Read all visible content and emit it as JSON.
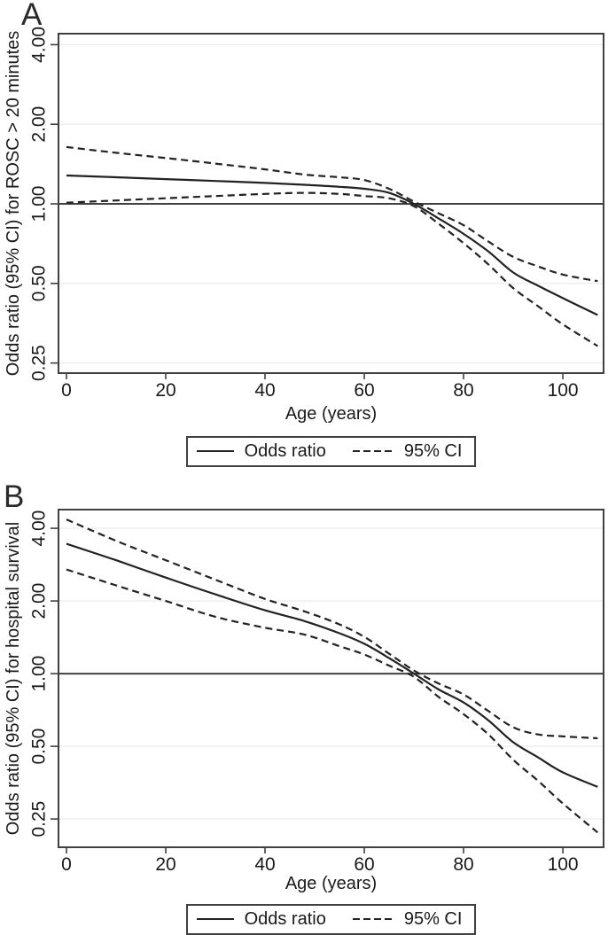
{
  "colors": {
    "line": "#222222",
    "frame": "#404040",
    "grid": "#ededed",
    "reference": "#404040",
    "text": "#1a1a1a",
    "background": "#ffffff"
  },
  "chart_data": [
    {
      "type": "line",
      "panel": "A",
      "title": "",
      "xlabel": "Age (years)",
      "ylabel": "Odds ratio (95% CI) for ROSC > 20 minutes",
      "x_scale": "linear",
      "y_scale": "log2",
      "xlim": [
        -1.6,
        108.2
      ],
      "ylim": [
        0.229,
        4.4
      ],
      "grid": true,
      "reference_line": 1.0,
      "legend_position": "bottom-center",
      "x_ticks": [
        {
          "v": 0,
          "label": "0"
        },
        {
          "v": 20,
          "label": "20"
        },
        {
          "v": 40,
          "label": "40"
        },
        {
          "v": 60,
          "label": "60"
        },
        {
          "v": 80,
          "label": "80"
        },
        {
          "v": 100,
          "label": "100"
        }
      ],
      "y_ticks": [
        {
          "v": 4,
          "label": "4.00"
        },
        {
          "v": 2,
          "label": "2.00"
        },
        {
          "v": 1,
          "label": "1.00"
        },
        {
          "v": 0.5,
          "label": "0.50"
        },
        {
          "v": 0.25,
          "label": "0.25"
        }
      ],
      "x": [
        0,
        10,
        20,
        30,
        40,
        48,
        55,
        60,
        65,
        70,
        75,
        80,
        85,
        90,
        95,
        100,
        107
      ],
      "series": [
        {
          "name": "Odds ratio",
          "style": "solid",
          "values": [
            1.28,
            1.26,
            1.24,
            1.22,
            1.2,
            1.18,
            1.16,
            1.14,
            1.1,
            1.0,
            0.88,
            0.77,
            0.66,
            0.55,
            0.49,
            0.44,
            0.38
          ]
        },
        {
          "name": "95% CI upper",
          "style": "dashed",
          "values": [
            1.64,
            1.56,
            1.49,
            1.42,
            1.35,
            1.29,
            1.26,
            1.23,
            1.14,
            1.02,
            0.92,
            0.83,
            0.72,
            0.63,
            0.58,
            0.54,
            0.51
          ]
        },
        {
          "name": "95% CI lower",
          "style": "dashed",
          "values": [
            1.01,
            1.03,
            1.05,
            1.07,
            1.09,
            1.1,
            1.09,
            1.07,
            1.05,
            0.98,
            0.84,
            0.71,
            0.59,
            0.48,
            0.41,
            0.35,
            0.29
          ]
        }
      ],
      "legend": [
        {
          "label": "Odds ratio",
          "style": "solid"
        },
        {
          "label": "95% CI",
          "style": "dashed"
        }
      ]
    },
    {
      "type": "line",
      "panel": "B",
      "title": "",
      "xlabel": "Age (years)",
      "ylabel": "Odds ratio (95% CI) for hospital survival",
      "x_scale": "linear",
      "y_scale": "log2",
      "xlim": [
        -1.6,
        108.2
      ],
      "ylim": [
        0.191,
        4.78
      ],
      "grid": true,
      "reference_line": 1.0,
      "legend_position": "bottom-center",
      "x_ticks": [
        {
          "v": 0,
          "label": "0"
        },
        {
          "v": 20,
          "label": "20"
        },
        {
          "v": 40,
          "label": "40"
        },
        {
          "v": 60,
          "label": "60"
        },
        {
          "v": 80,
          "label": "80"
        },
        {
          "v": 100,
          "label": "100"
        }
      ],
      "y_ticks": [
        {
          "v": 4,
          "label": "4.00"
        },
        {
          "v": 2,
          "label": "2.00"
        },
        {
          "v": 1,
          "label": "1.00"
        },
        {
          "v": 0.5,
          "label": "0.50"
        },
        {
          "v": 0.25,
          "label": "0.25"
        }
      ],
      "x": [
        0,
        10,
        20,
        30,
        40,
        48,
        55,
        60,
        65,
        70,
        75,
        80,
        85,
        90,
        95,
        100,
        107
      ],
      "series": [
        {
          "name": "Odds ratio",
          "style": "solid",
          "values": [
            3.45,
            2.95,
            2.5,
            2.13,
            1.83,
            1.65,
            1.47,
            1.33,
            1.16,
            1.0,
            0.86,
            0.76,
            0.64,
            0.52,
            0.45,
            0.39,
            0.34
          ]
        },
        {
          "name": "95% CI upper",
          "style": "dashed",
          "values": [
            4.35,
            3.55,
            2.95,
            2.45,
            2.04,
            1.81,
            1.6,
            1.42,
            1.21,
            1.03,
            0.91,
            0.82,
            0.7,
            0.6,
            0.56,
            0.55,
            0.54
          ]
        },
        {
          "name": "95% CI lower",
          "style": "dashed",
          "values": [
            2.7,
            2.32,
            2.0,
            1.72,
            1.55,
            1.45,
            1.3,
            1.2,
            1.08,
            0.97,
            0.8,
            0.68,
            0.56,
            0.44,
            0.36,
            0.29,
            0.22
          ]
        }
      ],
      "legend": [
        {
          "label": "Odds ratio",
          "style": "solid"
        },
        {
          "label": "95% CI",
          "style": "dashed"
        }
      ]
    }
  ]
}
